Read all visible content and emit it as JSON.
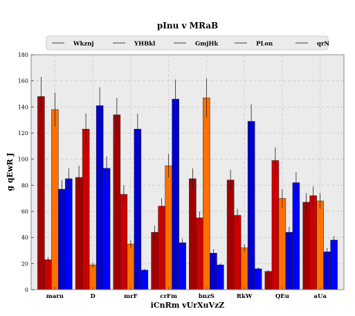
{
  "chart_data": {
    "type": "bar",
    "title": "pInu v MRaB",
    "xlabel": "iCnRm vUrXuVzZ",
    "ylabel": "g qEwR J",
    "ylim": [
      0,
      180
    ],
    "yticks": [
      0,
      20,
      40,
      60,
      80,
      100,
      120,
      140,
      160,
      180
    ],
    "grid": true,
    "legend_position": "top",
    "categories": [
      "maru",
      "D",
      "mrF",
      "crFm",
      "bnzS",
      "RkW",
      "QEu",
      "aUa"
    ],
    "series": [
      {
        "name": "Wkznj",
        "color": "#a50000",
        "values": [
          148,
          86,
          134,
          44,
          85,
          84,
          14,
          67
        ],
        "errors": [
          15,
          9,
          13,
          5,
          8,
          8,
          1,
          7
        ]
      },
      {
        "name": "YHBkl",
        "color": "#cc0000",
        "values": [
          23,
          123,
          73,
          64,
          55,
          57,
          99,
          72
        ],
        "errors": [
          2,
          12,
          7,
          6,
          5,
          5,
          10,
          7
        ]
      },
      {
        "name": "GmjHk",
        "color": "#ff7000",
        "values": [
          138,
          19,
          35,
          95,
          147,
          32,
          70,
          68
        ],
        "errors": [
          13,
          2,
          3,
          9,
          15,
          3,
          7,
          6
        ]
      },
      {
        "name": "PLon",
        "color": "#0000cc",
        "values": [
          77,
          141,
          123,
          146,
          28,
          129,
          44,
          29
        ],
        "errors": [
          7,
          14,
          12,
          15,
          3,
          13,
          4,
          3
        ]
      },
      {
        "name": "qrN",
        "color": "#0000ff",
        "values": [
          85,
          93,
          15,
          36,
          19,
          16,
          82,
          38
        ],
        "errors": [
          8,
          9,
          1,
          3,
          1,
          1,
          8,
          3
        ]
      }
    ]
  }
}
